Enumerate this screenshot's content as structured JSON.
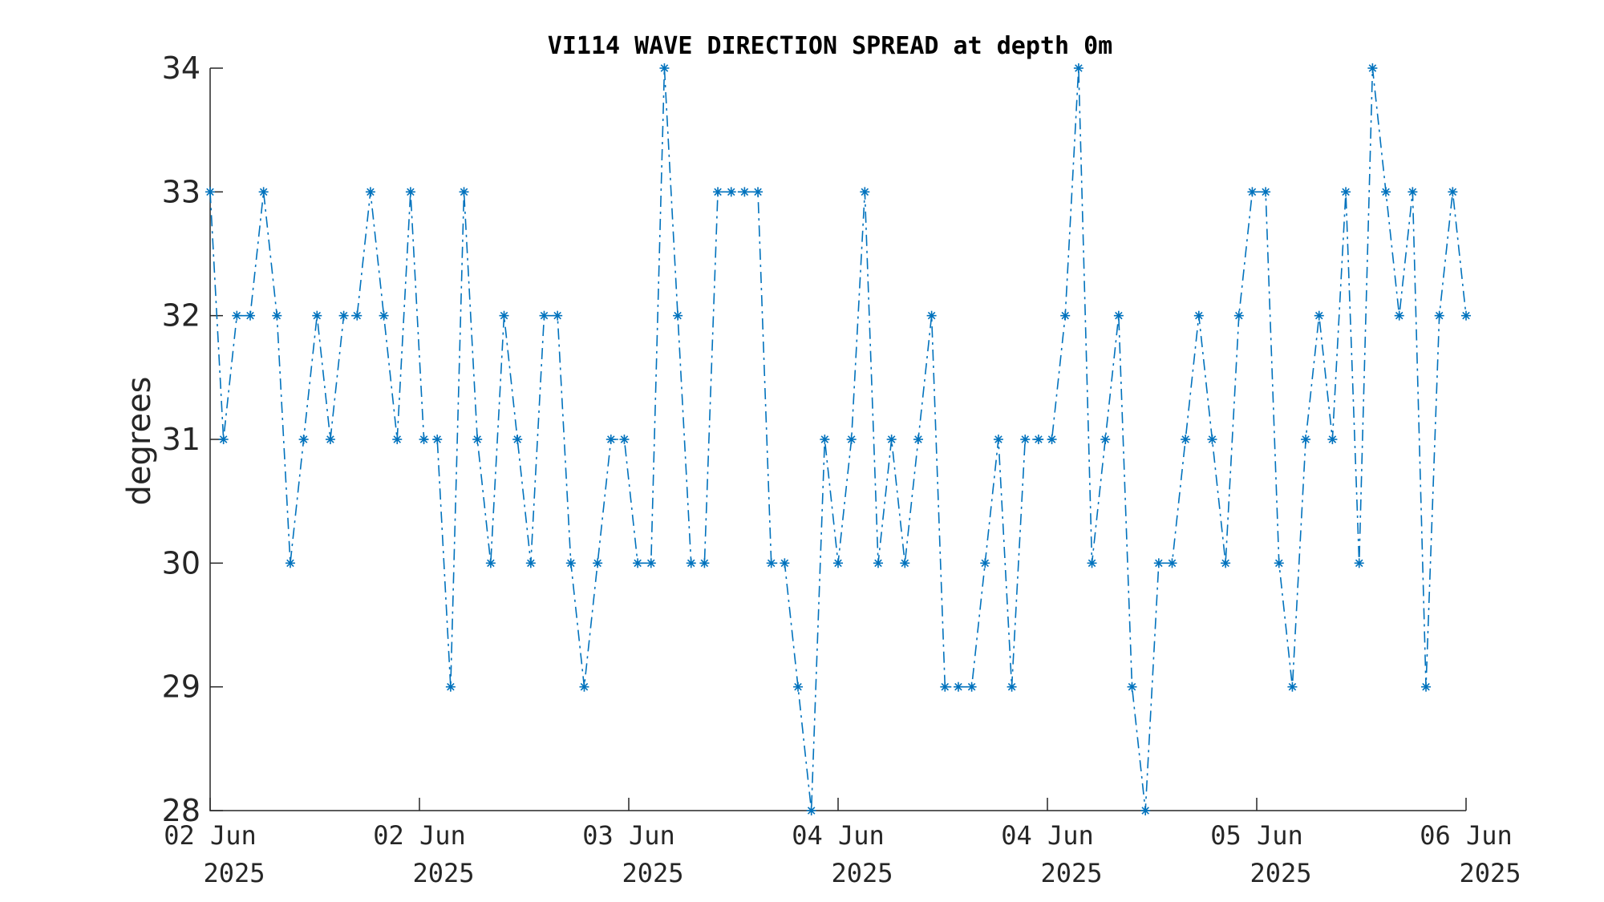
{
  "chart_data": {
    "type": "line",
    "title": "VI114 WAVE DIRECTION SPREAD at depth 0m",
    "xlabel": "",
    "ylabel": "degrees",
    "ylim": [
      28,
      34
    ],
    "yticks": [
      28,
      29,
      30,
      31,
      32,
      33,
      34
    ],
    "xticks": [
      {
        "line1": "02 Jun",
        "line2": "2025"
      },
      {
        "line1": "02 Jun",
        "line2": "2025"
      },
      {
        "line1": "03 Jun",
        "line2": "2025"
      },
      {
        "line1": "04 Jun",
        "line2": "2025"
      },
      {
        "line1": "04 Jun",
        "line2": "2025"
      },
      {
        "line1": "05 Jun",
        "line2": "2025"
      },
      {
        "line1": "06 Jun",
        "line2": "2025"
      }
    ],
    "grid": false,
    "series": [
      {
        "color": "#0072BD",
        "marker": "asterisk",
        "line_style": "dash-dot",
        "values": [
          33,
          31,
          32,
          32,
          33,
          32,
          30,
          31,
          32,
          31,
          32,
          32,
          33,
          32,
          31,
          33,
          31,
          31,
          29,
          33,
          31,
          30,
          32,
          31,
          30,
          32,
          32,
          30,
          29,
          30,
          31,
          31,
          30,
          30,
          34,
          32,
          30,
          30,
          33,
          33,
          33,
          33,
          30,
          30,
          29,
          28,
          31,
          30,
          31,
          33,
          30,
          31,
          30,
          31,
          32,
          29,
          29,
          29,
          30,
          31,
          29,
          31,
          31,
          31,
          32,
          34,
          30,
          31,
          32,
          29,
          28,
          30,
          30,
          31,
          32,
          31,
          30,
          32,
          33,
          33,
          30,
          29,
          31,
          32,
          31,
          33,
          30,
          34,
          33,
          32,
          33,
          29,
          32,
          33,
          32
        ]
      }
    ]
  }
}
